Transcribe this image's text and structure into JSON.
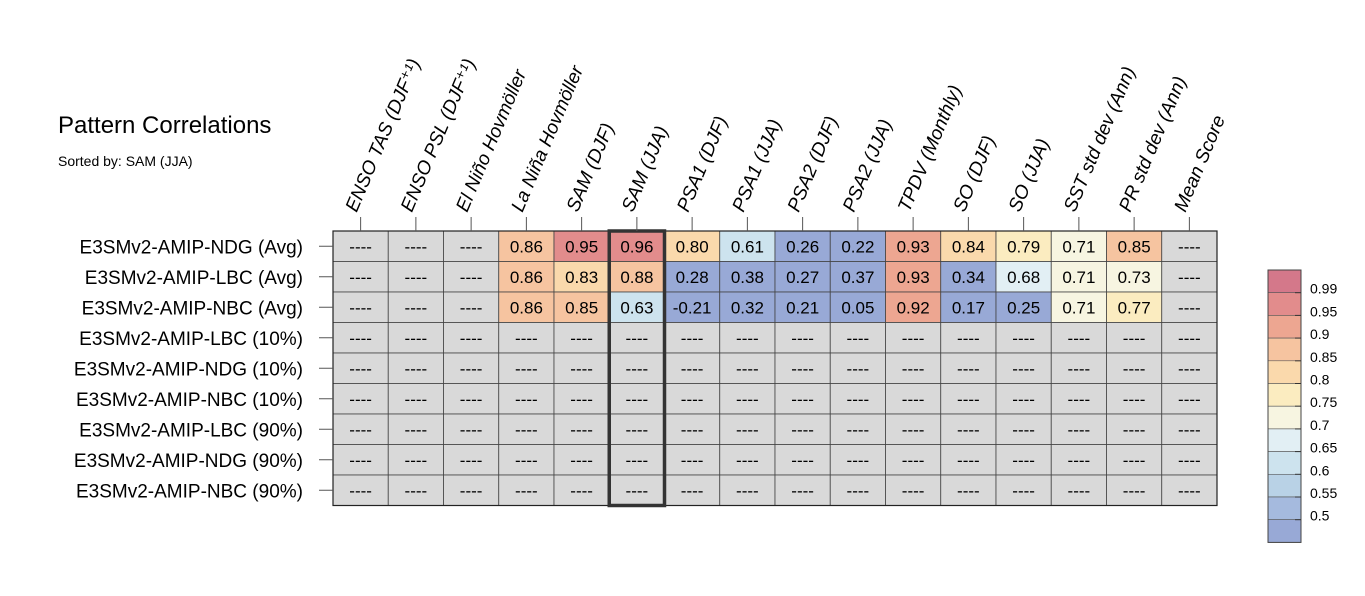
{
  "chart_data": {
    "type": "heatmap",
    "title": "Pattern Correlations",
    "subtitle": "Sorted by: SAM (JJA)",
    "columns": [
      "ENSO TAS (DJF⁺¹)",
      "ENSO PSL (DJF⁺¹)",
      "El Niño Hovmöller",
      "La Niña Hovmöller",
      "SAM (DJF)",
      "SAM (JJA)",
      "PSA1 (DJF)",
      "PSA1 (JJA)",
      "PSA2 (DJF)",
      "PSA2 (JJA)",
      "TPDV (Monthly)",
      "SO (DJF)",
      "SO (JJA)",
      "SST std dev (Ann)",
      "PR std dev (Ann)",
      "Mean Score"
    ],
    "rows": [
      "E3SMv2-AMIP-NDG (Avg)",
      "E3SMv2-AMIP-LBC (Avg)",
      "E3SMv2-AMIP-NBC (Avg)",
      "E3SMv2-AMIP-LBC (10%)",
      "E3SMv2-AMIP-NDG (10%)",
      "E3SMv2-AMIP-NBC (10%)",
      "E3SMv2-AMIP-LBC (90%)",
      "E3SMv2-AMIP-NDG (90%)",
      "E3SMv2-AMIP-NBC (90%)"
    ],
    "values": [
      [
        null,
        null,
        null,
        0.86,
        0.95,
        0.96,
        0.8,
        0.61,
        0.26,
        0.22,
        0.93,
        0.84,
        0.79,
        0.71,
        0.85,
        null
      ],
      [
        null,
        null,
        null,
        0.86,
        0.83,
        0.88,
        0.28,
        0.38,
        0.27,
        0.37,
        0.93,
        0.34,
        0.68,
        0.71,
        0.73,
        null
      ],
      [
        null,
        null,
        null,
        0.86,
        0.85,
        0.63,
        -0.21,
        0.32,
        0.21,
        0.05,
        0.92,
        0.17,
        0.25,
        0.71,
        0.77,
        null
      ],
      [
        null,
        null,
        null,
        null,
        null,
        null,
        null,
        null,
        null,
        null,
        null,
        null,
        null,
        null,
        null,
        null
      ],
      [
        null,
        null,
        null,
        null,
        null,
        null,
        null,
        null,
        null,
        null,
        null,
        null,
        null,
        null,
        null,
        null
      ],
      [
        null,
        null,
        null,
        null,
        null,
        null,
        null,
        null,
        null,
        null,
        null,
        null,
        null,
        null,
        null,
        null
      ],
      [
        null,
        null,
        null,
        null,
        null,
        null,
        null,
        null,
        null,
        null,
        null,
        null,
        null,
        null,
        null,
        null
      ],
      [
        null,
        null,
        null,
        null,
        null,
        null,
        null,
        null,
        null,
        null,
        null,
        null,
        null,
        null,
        null,
        null
      ],
      [
        null,
        null,
        null,
        null,
        null,
        null,
        null,
        null,
        null,
        null,
        null,
        null,
        null,
        null,
        null,
        null
      ]
    ],
    "missing_text": "----",
    "highlight_column": "SAM (JJA)",
    "legend": {
      "position": "right",
      "ticks": [
        "0.99",
        "0.95",
        "0.9",
        "0.85",
        "0.8",
        "0.75",
        "0.7",
        "0.65",
        "0.6",
        "0.55",
        "0.5"
      ],
      "bin_edges": [
        1.0,
        0.99,
        0.95,
        0.9,
        0.85,
        0.8,
        0.75,
        0.7,
        0.65,
        0.6,
        0.55,
        0.5
      ],
      "colors": [
        "#d4788a",
        "#e28c8c",
        "#eda691",
        "#f6c4a0",
        "#fad9ac",
        "#fbecc0",
        "#f7f5e1",
        "#e2eff4",
        "#cde3ee",
        "#b9d2e6",
        "#a5bade",
        "#98a9d6"
      ]
    },
    "missing_color": "#d9d9d9"
  }
}
